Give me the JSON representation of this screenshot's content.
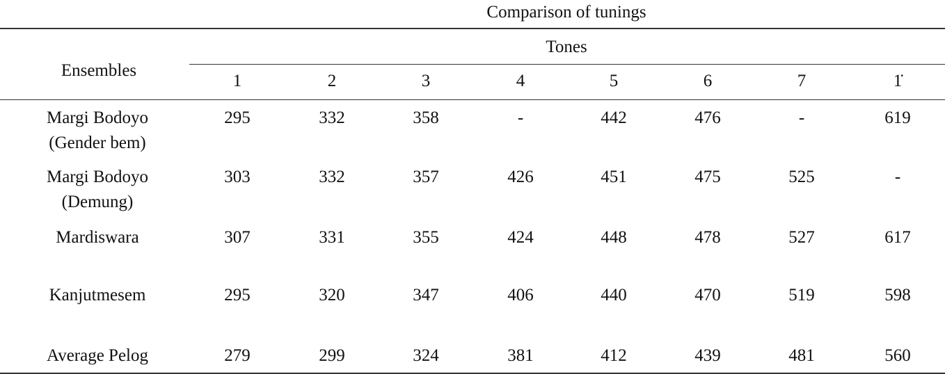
{
  "table": {
    "title": "Comparison of tunings",
    "row_header": "Ensembles",
    "group_header": "Tones",
    "columns": [
      "1",
      "2",
      "3",
      "4",
      "5",
      "6",
      "7",
      "1̇"
    ],
    "rows": [
      {
        "label": [
          "Margi Bodoyo",
          "(Gender bem)"
        ],
        "values": [
          295,
          332,
          358,
          "-",
          442,
          476,
          "-",
          619
        ]
      },
      {
        "label": [
          "Margi Bodoyo",
          "(Demung)"
        ],
        "values": [
          303,
          332,
          357,
          426,
          451,
          475,
          525,
          "-"
        ]
      },
      {
        "label": [
          "Mardiswara"
        ],
        "values": [
          307,
          331,
          355,
          424,
          448,
          478,
          527,
          617
        ]
      },
      {
        "label": [
          "Kanjutmesem"
        ],
        "values": [
          295,
          320,
          347,
          406,
          440,
          470,
          519,
          598
        ]
      },
      {
        "label": [
          "Average Pelog"
        ],
        "values": [
          279,
          299,
          324,
          381,
          412,
          439,
          481,
          560
        ]
      }
    ]
  }
}
